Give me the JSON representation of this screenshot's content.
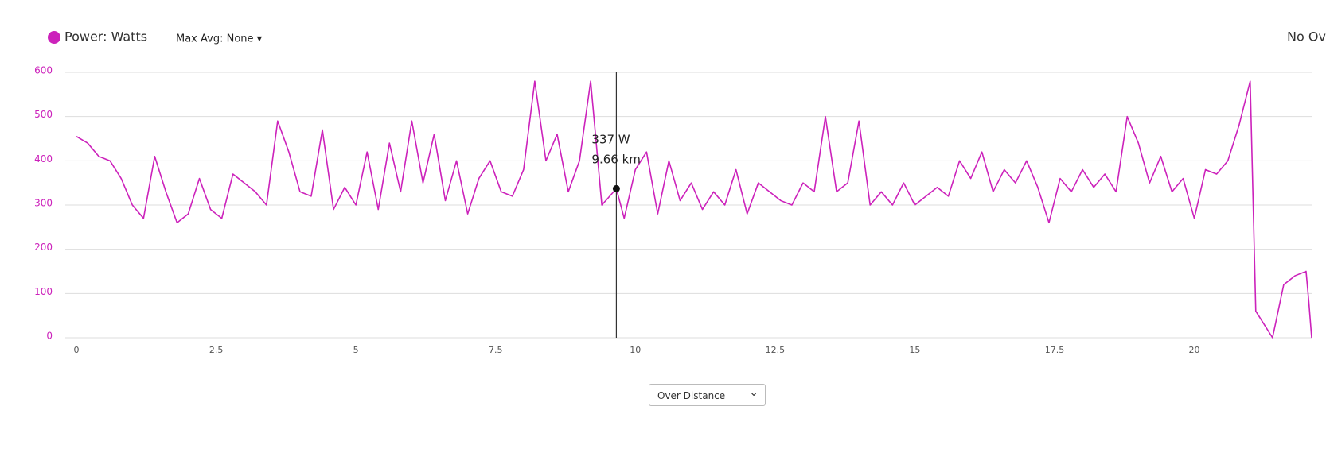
{
  "chart_data": {
    "type": "line",
    "series": [
      {
        "name": "Power: Watts",
        "color": "#cc22bb",
        "values": [
          455,
          440,
          410,
          400,
          360,
          300,
          270,
          410,
          330,
          260,
          280,
          360,
          290,
          270,
          370,
          350,
          330,
          300,
          490,
          420,
          330,
          320,
          470,
          290,
          340,
          300,
          420,
          290,
          440,
          330,
          490,
          350,
          460,
          310,
          400,
          280,
          360,
          400,
          330,
          320,
          380,
          580,
          400,
          460,
          330,
          400,
          580,
          300,
          337,
          270,
          380,
          420,
          280,
          400,
          310,
          350,
          290,
          330,
          300,
          380,
          280,
          350,
          330,
          310,
          300,
          350,
          330,
          500,
          330,
          350,
          490,
          300,
          330,
          300,
          350,
          300,
          320,
          340,
          320,
          400,
          360,
          420,
          330,
          380,
          350,
          400,
          340,
          260,
          360,
          330,
          380,
          340,
          370,
          330,
          500,
          440,
          350,
          410,
          330,
          360,
          270,
          380,
          370,
          400,
          480,
          580,
          60,
          40,
          0,
          120,
          140,
          150,
          80,
          0
        ]
      }
    ],
    "x": [
      0,
      0.2,
      0.4,
      0.6,
      0.8,
      1.0,
      1.2,
      1.4,
      1.6,
      1.8,
      2.0,
      2.2,
      2.4,
      2.6,
      2.8,
      3.0,
      3.2,
      3.4,
      3.6,
      3.8,
      4.0,
      4.2,
      4.4,
      4.6,
      4.8,
      5.0,
      5.2,
      5.4,
      5.6,
      5.8,
      6.0,
      6.2,
      6.4,
      6.6,
      6.8,
      7.0,
      7.2,
      7.4,
      7.6,
      7.8,
      8.0,
      8.2,
      8.4,
      8.6,
      8.8,
      9.0,
      9.2,
      9.4,
      9.66,
      9.8,
      10.0,
      10.2,
      10.4,
      10.6,
      10.8,
      11.0,
      11.2,
      11.4,
      11.6,
      11.8,
      12.0,
      12.2,
      12.4,
      12.6,
      12.8,
      13.0,
      13.2,
      13.4,
      13.6,
      13.8,
      14.0,
      14.2,
      14.4,
      14.6,
      14.8,
      15.0,
      15.2,
      15.4,
      15.6,
      15.8,
      16.0,
      16.2,
      16.4,
      16.6,
      16.8,
      17.0,
      17.2,
      17.4,
      17.6,
      17.8,
      18.0,
      18.2,
      18.4,
      18.6,
      18.8,
      19.0,
      19.2,
      19.4,
      19.6,
      19.8,
      20.0,
      20.2,
      20.4,
      20.6,
      20.8,
      21.0,
      21.1,
      21.2,
      21.4,
      21.6,
      21.8,
      22.0,
      22.05,
      22.1
    ],
    "xlim": [
      -0.2,
      22.1
    ],
    "xticks": [
      0,
      2.5,
      5,
      7.5,
      10,
      12.5,
      15,
      17.5,
      20
    ],
    "ylim": [
      0,
      600
    ],
    "yticks": [
      0,
      100,
      200,
      300,
      400,
      500,
      600
    ],
    "grid": true,
    "tooltip": {
      "x": 9.66,
      "y": 337,
      "value_label": "337 W",
      "x_label": "9.66 km"
    },
    "max_avg": "Max Avg: None ▾",
    "overlay": "No Ov",
    "mode": "Over Distance"
  }
}
